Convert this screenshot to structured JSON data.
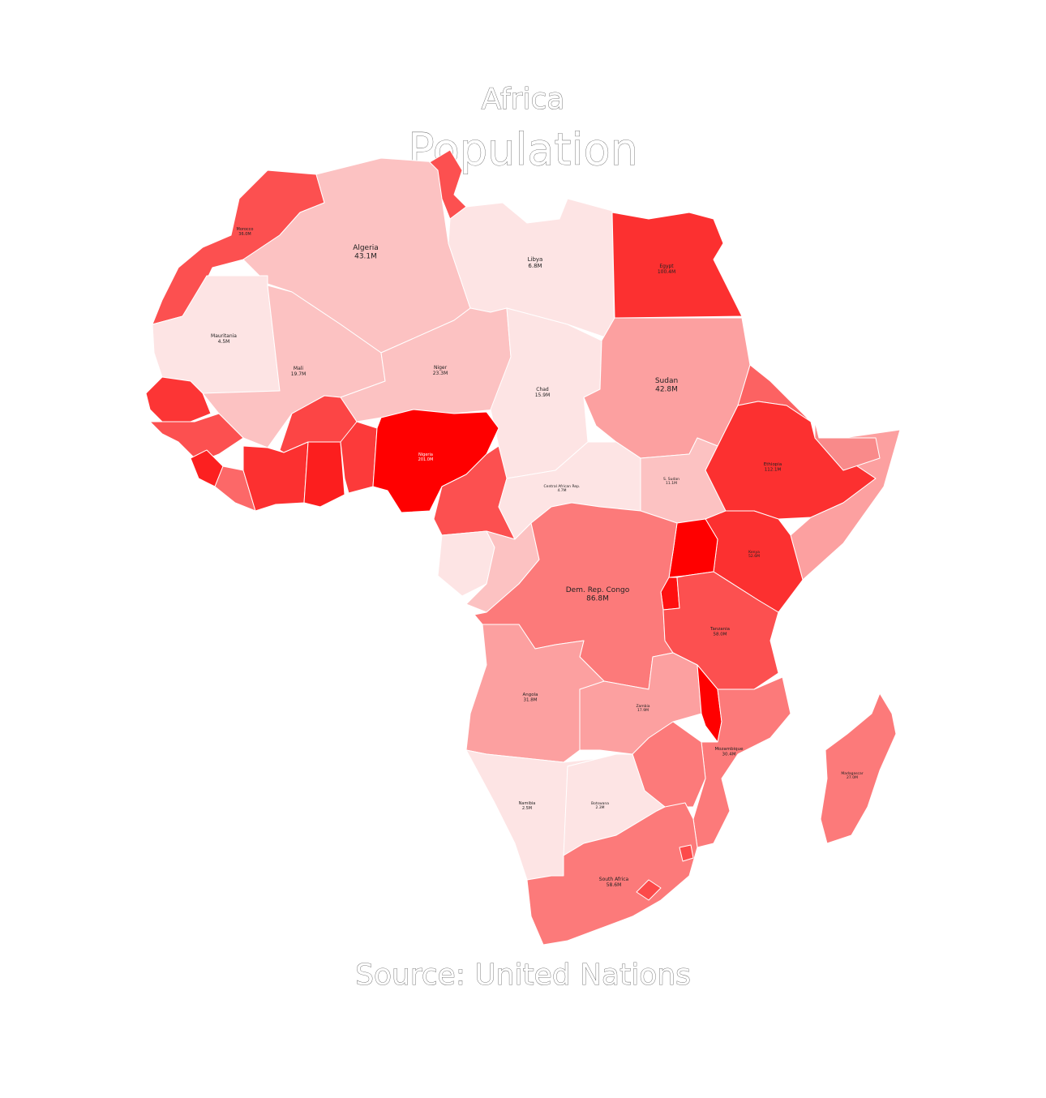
{
  "map": {
    "region": "Africa",
    "metric": "Population",
    "source": "Source: United Nations"
  },
  "colors": {
    "lowest": "#fde4e4",
    "low": "#fcc2c2",
    "midlow": "#fca0a0",
    "mid": "#fc7a7a",
    "midhigh": "#fc5050",
    "high": "#fc3030",
    "highest": "#ff0000",
    "border": "#ffffff"
  },
  "countries": [
    {
      "id": "morocco",
      "name": "Morocco",
      "value": "36.0M",
      "pop_millions": 36.0,
      "tier": "midhigh"
    },
    {
      "id": "algeria",
      "name": "Algeria",
      "value": "43.1M",
      "pop_millions": 43.1,
      "tier": "low"
    },
    {
      "id": "tunisia",
      "name": "",
      "value": "",
      "pop_millions": null,
      "tier": "midhigh"
    },
    {
      "id": "libya",
      "name": "Libya",
      "value": "6.8M",
      "pop_millions": 6.8,
      "tier": "lowest"
    },
    {
      "id": "egypt",
      "name": "Egypt",
      "value": "100.4M",
      "pop_millions": 100.4,
      "tier": "high"
    },
    {
      "id": "mauritania",
      "name": "Mauritania",
      "value": "4.5M",
      "pop_millions": 4.5,
      "tier": "lowest"
    },
    {
      "id": "mali",
      "name": "Mali",
      "value": "19.7M",
      "pop_millions": 19.7,
      "tier": "low"
    },
    {
      "id": "niger",
      "name": "Niger",
      "value": "23.3M",
      "pop_millions": 23.3,
      "tier": "low"
    },
    {
      "id": "chad",
      "name": "Chad",
      "value": "15.9M",
      "pop_millions": 15.9,
      "tier": "lowest"
    },
    {
      "id": "sudan",
      "name": "Sudan",
      "value": "42.8M",
      "pop_millions": 42.8,
      "tier": "midlow"
    },
    {
      "id": "nigeria",
      "name": "Nigeria",
      "value": "201.0M",
      "pop_millions": 201.0,
      "tier": "highest"
    },
    {
      "id": "car",
      "name": "Central African Rep.",
      "value": "4.7M",
      "pop_millions": 4.7,
      "tier": "lowest"
    },
    {
      "id": "ssudan",
      "name": "S. Sudan",
      "value": "11.1M",
      "pop_millions": 11.1,
      "tier": "low"
    },
    {
      "id": "ethiopia",
      "name": "Ethiopia",
      "value": "112.1M",
      "pop_millions": 112.1,
      "tier": "high"
    },
    {
      "id": "kenya",
      "name": "Kenya",
      "value": "52.6M",
      "pop_millions": 52.6,
      "tier": "high"
    },
    {
      "id": "drc",
      "name": "Dem. Rep. Congo",
      "value": "86.8M",
      "pop_millions": 86.8,
      "tier": "mid"
    },
    {
      "id": "tanzania",
      "name": "Tanzania",
      "value": "58.0M",
      "pop_millions": 58.0,
      "tier": "midhigh"
    },
    {
      "id": "angola",
      "name": "Angola",
      "value": "31.8M",
      "pop_millions": 31.8,
      "tier": "midlow"
    },
    {
      "id": "zambia",
      "name": "Zambia",
      "value": "17.9M",
      "pop_millions": 17.9,
      "tier": "midlow"
    },
    {
      "id": "mozambique",
      "name": "Mozambique",
      "value": "30.4M",
      "pop_millions": 30.4,
      "tier": "mid"
    },
    {
      "id": "madagascar",
      "name": "Madagascar",
      "value": "27.0M",
      "pop_millions": 27.0,
      "tier": "mid"
    },
    {
      "id": "namibia",
      "name": "Namibia",
      "value": "2.5M",
      "pop_millions": 2.5,
      "tier": "lowest"
    },
    {
      "id": "botswana",
      "name": "Botswana",
      "value": "2.3M",
      "pop_millions": 2.3,
      "tier": "lowest"
    },
    {
      "id": "southafrica",
      "name": "South Africa",
      "value": "58.6M",
      "pop_millions": 58.6,
      "tier": "mid"
    }
  ]
}
